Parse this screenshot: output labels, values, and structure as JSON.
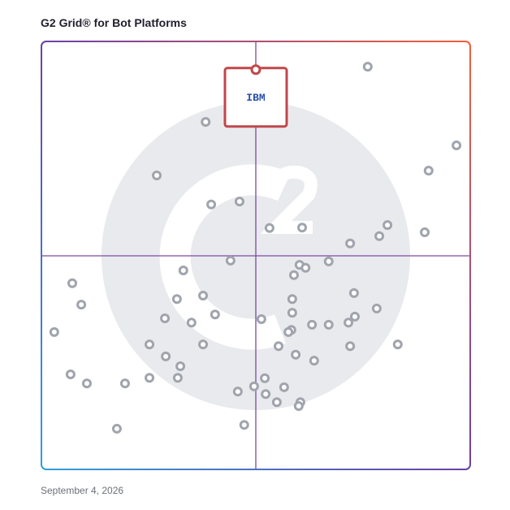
{
  "chart_data": {
    "type": "scatter",
    "title": "G2 Grid® for Bot Platforms",
    "footer": "September 4, 2026",
    "xlim": [
      0,
      100
    ],
    "ylim": [
      0,
      100
    ],
    "color": "#a0a4ad",
    "x": [
      76.1,
      38.3,
      96.8,
      90.3,
      26.9,
      39.6,
      46.2,
      53.2,
      60.8,
      80.7,
      78.8,
      89.4,
      72.0,
      44.1,
      60.2,
      61.6,
      67.0,
      58.9,
      33.1,
      7.2,
      9.3,
      31.6,
      37.7,
      58.5,
      72.9,
      40.5,
      58.5,
      28.8,
      35.0,
      51.3,
      78.2,
      73.1,
      71.6,
      63.1,
      67.0,
      58.3,
      57.6,
      3.0,
      25.2,
      37.7,
      55.3,
      72.0,
      83.1,
      29.0,
      32.4,
      59.3,
      63.6,
      6.8,
      10.6,
      19.5,
      25.2,
      31.8,
      52.1,
      49.6,
      56.6,
      45.8,
      52.3,
      54.9,
      60.4,
      60.0,
      17.6,
      47.3
    ],
    "y": [
      94.1,
      81.2,
      75.7,
      69.8,
      68.7,
      61.9,
      62.6,
      56.4,
      56.5,
      57.1,
      54.5,
      55.4,
      52.8,
      48.8,
      47.8,
      47.1,
      48.6,
      45.4,
      46.5,
      43.5,
      38.5,
      39.8,
      40.6,
      39.8,
      41.2,
      36.2,
      36.6,
      35.3,
      34.3,
      35.1,
      37.6,
      35.7,
      34.3,
      33.8,
      33.8,
      32.6,
      32.1,
      32.1,
      29.2,
      29.2,
      28.8,
      28.8,
      29.2,
      26.4,
      24.1,
      26.8,
      25.4,
      22.2,
      20.1,
      20.1,
      21.4,
      21.4,
      21.3,
      19.4,
      19.2,
      18.2,
      17.6,
      15.7,
      15.7,
      14.8,
      9.5,
      10.4
    ],
    "highlight": {
      "label": "IBM",
      "x": 50.0,
      "y": 93.4,
      "color": "#c0474a"
    }
  }
}
